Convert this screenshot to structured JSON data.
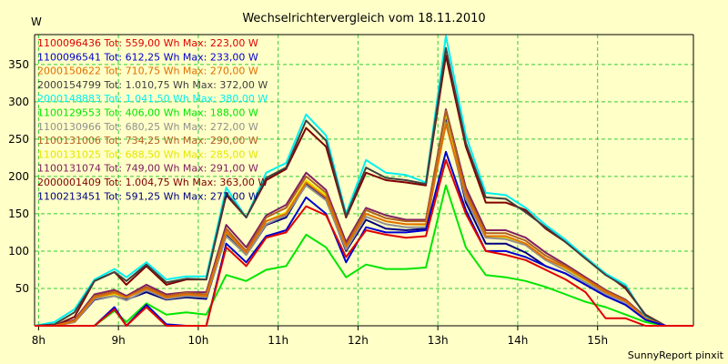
{
  "chart_data": {
    "type": "line",
    "title": "Wechselrichtervergleich vom 18.11.2010",
    "ylabel": "W",
    "xlabel": "",
    "footer": "SunnyReport pinxit",
    "grid": true,
    "legend_position": "top-left",
    "xlim": [
      7.95,
      16.2
    ],
    "ylim": [
      0,
      390
    ],
    "x_ticks": [
      {
        "x": 8,
        "label": "8h"
      },
      {
        "x": 9,
        "label": "9h"
      },
      {
        "x": 10,
        "label": "10h"
      },
      {
        "x": 11,
        "label": "11h"
      },
      {
        "x": 12,
        "label": "12h"
      },
      {
        "x": 13,
        "label": "13h"
      },
      {
        "x": 14,
        "label": "14h"
      },
      {
        "x": 15,
        "label": "15h"
      }
    ],
    "y_ticks": [
      {
        "y": 50,
        "label": "50"
      },
      {
        "y": 100,
        "label": "100"
      },
      {
        "y": 150,
        "label": "150"
      },
      {
        "y": 200,
        "label": "200"
      },
      {
        "y": 250,
        "label": "250"
      },
      {
        "y": 300,
        "label": "300"
      },
      {
        "y": 350,
        "label": "350"
      }
    ],
    "x": [
      7.95,
      8.2,
      8.45,
      8.7,
      8.95,
      9.1,
      9.35,
      9.6,
      9.85,
      10.1,
      10.35,
      10.6,
      10.85,
      11.1,
      11.35,
      11.6,
      11.85,
      12.1,
      12.35,
      12.6,
      12.85,
      13.1,
      13.35,
      13.6,
      13.85,
      14.1,
      14.35,
      14.6,
      14.85,
      15.1,
      15.35,
      15.6,
      15.85,
      16.2
    ],
    "series": [
      {
        "name": "1100213451 Tot: 591,25 Wh Max: 277,00 W",
        "legend_text": "1100213451 Tot: 591,25 Wh Max: 277,00 W",
        "color": "#000080",
        "values": [
          0,
          0,
          5,
          35,
          40,
          35,
          45,
          35,
          38,
          36,
          122,
          95,
          135,
          145,
          190,
          170,
          100,
          142,
          130,
          128,
          130,
          280,
          165,
          110,
          110,
          98,
          80,
          70,
          55,
          40,
          28,
          10,
          0,
          0
        ]
      },
      {
        "name": "2000001409 Tot: 1.004,75 Wh Max: 363,00 W",
        "legend_text": "2000001409 Tot: 1.004,75 Wh Max: 363,00 W",
        "color": "#800000",
        "values": [
          0,
          0,
          12,
          60,
          72,
          55,
          80,
          55,
          62,
          62,
          175,
          145,
          195,
          210,
          265,
          240,
          145,
          205,
          195,
          192,
          188,
          362,
          240,
          165,
          165,
          155,
          130,
          112,
          90,
          70,
          50,
          15,
          0,
          0
        ]
      },
      {
        "name": "1100131074 Tot: 749,00 Wh Max: 291,00 W",
        "legend_text": "1100131074 Tot: 749,00 Wh Max: 291,00 W",
        "color": "#802060",
        "values": [
          0,
          0,
          8,
          42,
          48,
          40,
          55,
          42,
          45,
          45,
          135,
          105,
          148,
          162,
          205,
          182,
          112,
          158,
          148,
          142,
          142,
          290,
          185,
          128,
          128,
          118,
          98,
          82,
          65,
          48,
          35,
          12,
          0,
          0
        ]
      },
      {
        "name": "1100131025 Tot: 688,50 Wh Max: 285,00 W",
        "legend_text": "1100131025 Tot: 688,50 Wh Max: 285,00 W",
        "color": "#e6e600",
        "values": [
          0,
          0,
          6,
          38,
          42,
          38,
          50,
          38,
          42,
          40,
          125,
          98,
          140,
          152,
          195,
          175,
          105,
          150,
          140,
          136,
          135,
          284,
          175,
          120,
          118,
          110,
          90,
          76,
          60,
          45,
          32,
          10,
          0,
          0
        ]
      },
      {
        "name": "1100131006 Tot: 734,25 Wh Max: 290,00 W",
        "legend_text": "1100131006 Tot: 734,25 Wh Max: 290,00 W",
        "color": "#b06020",
        "values": [
          0,
          0,
          7,
          40,
          46,
          38,
          52,
          40,
          44,
          42,
          130,
          100,
          145,
          158,
          200,
          178,
          108,
          155,
          144,
          140,
          140,
          288,
          180,
          124,
          124,
          114,
          94,
          80,
          63,
          47,
          34,
          11,
          0,
          0
        ]
      },
      {
        "name": "1100130966 Tot: 680,25 Wh Max: 272,00 W",
        "legend_text": "1100130966 Tot: 680,25 Wh Max: 272,00 W",
        "color": "#909090",
        "values": [
          0,
          0,
          5,
          36,
          40,
          34,
          48,
          36,
          40,
          38,
          120,
          95,
          136,
          148,
          188,
          168,
          102,
          146,
          136,
          132,
          132,
          272,
          170,
          118,
          116,
          108,
          88,
          74,
          58,
          43,
          31,
          10,
          0,
          0
        ]
      },
      {
        "name": "1100129553 Tot: 406,00 Wh Max: 188,00 W",
        "legend_text": "1100129553 Tot: 406,00 Wh Max: 188,00 W",
        "color": "#00e600",
        "values": [
          0,
          0,
          0,
          0,
          20,
          5,
          30,
          15,
          18,
          15,
          68,
          60,
          75,
          80,
          122,
          105,
          65,
          82,
          76,
          76,
          78,
          188,
          105,
          68,
          65,
          60,
          52,
          42,
          32,
          25,
          15,
          5,
          0,
          0
        ]
      },
      {
        "name": "2000148883 Tot: 1.041,50 Wh Max: 380,00 W",
        "legend_text": "2000148883 Tot: 1.041,50 Wh Max: 380,00 W",
        "color": "#00f0f0",
        "values": [
          0,
          5,
          22,
          62,
          76,
          65,
          85,
          62,
          66,
          66,
          185,
          145,
          205,
          218,
          283,
          255,
          150,
          222,
          205,
          202,
          192,
          388,
          255,
          178,
          175,
          158,
          135,
          115,
          92,
          70,
          55,
          12,
          0,
          0
        ]
      },
      {
        "name": "2000154799 Tot: 1.010,75 Wh Max: 372,00 W",
        "legend_text": "2000154799 Tot: 1.010,75 Wh Max: 372,00 W",
        "color": "#404040",
        "values": [
          0,
          2,
          18,
          60,
          72,
          60,
          82,
          58,
          63,
          62,
          178,
          145,
          198,
          212,
          275,
          248,
          147,
          212,
          198,
          195,
          190,
          372,
          245,
          172,
          170,
          152,
          132,
          112,
          90,
          68,
          52,
          14,
          0,
          0
        ]
      },
      {
        "name": "2000150622 Tot: 710,75 Wh Max: 270,00 W",
        "legend_text": "2000150622 Tot: 710,75 Wh Max: 270,00 W",
        "color": "#e07000",
        "values": [
          0,
          0,
          6,
          38,
          44,
          38,
          50,
          38,
          42,
          40,
          126,
          98,
          140,
          150,
          192,
          172,
          106,
          150,
          140,
          136,
          136,
          270,
          176,
          120,
          120,
          110,
          90,
          78,
          62,
          45,
          33,
          10,
          0,
          0
        ]
      },
      {
        "name": "1100096541 Tot: 612,25 Wh Max: 233,00 W",
        "legend_text": "1100096541 Tot: 612,25 Wh Max: 233,00 W",
        "color": "#0000d0",
        "values": [
          0,
          0,
          0,
          0,
          25,
          0,
          28,
          2,
          0,
          0,
          110,
          85,
          120,
          128,
          172,
          150,
          85,
          132,
          125,
          125,
          128,
          233,
          155,
          100,
          100,
          92,
          80,
          70,
          55,
          40,
          28,
          8,
          0,
          0
        ]
      },
      {
        "name": "1100096436 Tot: 559,00 Wh Max: 223,00 W",
        "legend_text": "1100096436 Tot: 559,00 Wh Max: 223,00 W",
        "color": "#e00000",
        "values": [
          0,
          0,
          0,
          0,
          22,
          0,
          25,
          0,
          0,
          0,
          105,
          80,
          118,
          125,
          160,
          148,
          92,
          128,
          122,
          118,
          120,
          222,
          150,
          100,
          95,
          88,
          75,
          62,
          45,
          10,
          10,
          0,
          0,
          0
        ]
      }
    ]
  }
}
